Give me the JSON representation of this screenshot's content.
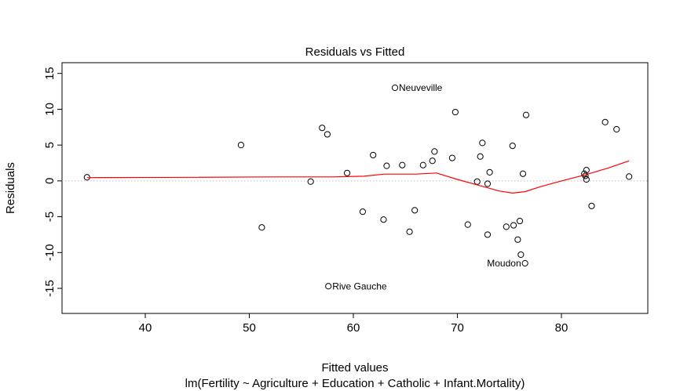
{
  "chart_data": {
    "type": "scatter",
    "title": "Residuals vs Fitted",
    "xlabel": "Fitted values",
    "subtitle": "lm(Fertility ~ Agriculture + Education + Catholic + Infant.Mortality)",
    "ylabel": "Residuals",
    "xlim": [
      32,
      88.3
    ],
    "ylim": [
      -18.5,
      16.5
    ],
    "x_ticks": [
      40,
      50,
      60,
      70,
      80
    ],
    "y_ticks": [
      -15,
      -10,
      -5,
      0,
      5,
      10,
      15
    ],
    "zero_line": {
      "y": 0,
      "color": "#bbbbbb",
      "style": "dotted"
    },
    "points": [
      {
        "x": 34.4,
        "y": 0.5
      },
      {
        "x": 49.2,
        "y": 5.0
      },
      {
        "x": 51.2,
        "y": -6.5
      },
      {
        "x": 55.9,
        "y": -0.1
      },
      {
        "x": 57.0,
        "y": 7.4
      },
      {
        "x": 57.5,
        "y": 6.5
      },
      {
        "x": 57.6,
        "y": -14.7
      },
      {
        "x": 59.4,
        "y": 1.1
      },
      {
        "x": 60.9,
        "y": -4.3
      },
      {
        "x": 61.9,
        "y": 3.6
      },
      {
        "x": 62.9,
        "y": -5.4
      },
      {
        "x": 63.2,
        "y": 2.1
      },
      {
        "x": 64.0,
        "y": 13.0
      },
      {
        "x": 64.7,
        "y": 2.2
      },
      {
        "x": 65.4,
        "y": -7.1
      },
      {
        "x": 65.9,
        "y": -4.1
      },
      {
        "x": 66.7,
        "y": 2.2
      },
      {
        "x": 67.6,
        "y": 2.8
      },
      {
        "x": 67.8,
        "y": 4.1
      },
      {
        "x": 69.5,
        "y": 3.2
      },
      {
        "x": 69.8,
        "y": 9.6
      },
      {
        "x": 71.0,
        "y": -6.1
      },
      {
        "x": 71.9,
        "y": -0.1
      },
      {
        "x": 72.2,
        "y": 3.4
      },
      {
        "x": 72.4,
        "y": 5.3
      },
      {
        "x": 72.9,
        "y": -0.4
      },
      {
        "x": 72.9,
        "y": -7.5
      },
      {
        "x": 73.1,
        "y": 1.2
      },
      {
        "x": 74.7,
        "y": -6.4
      },
      {
        "x": 75.3,
        "y": 4.9
      },
      {
        "x": 75.4,
        "y": -6.2
      },
      {
        "x": 75.8,
        "y": -8.2
      },
      {
        "x": 76.0,
        "y": -5.6
      },
      {
        "x": 76.1,
        "y": -10.3
      },
      {
        "x": 76.3,
        "y": 1.0
      },
      {
        "x": 76.5,
        "y": -11.5
      },
      {
        "x": 76.6,
        "y": 9.2
      },
      {
        "x": 82.2,
        "y": 1.0
      },
      {
        "x": 82.3,
        "y": 0.7
      },
      {
        "x": 82.4,
        "y": 1.5
      },
      {
        "x": 82.4,
        "y": 0.2
      },
      {
        "x": 82.9,
        "y": -3.5
      },
      {
        "x": 84.2,
        "y": 8.2
      },
      {
        "x": 85.3,
        "y": 7.2
      },
      {
        "x": 86.5,
        "y": 0.6
      }
    ],
    "smoother": {
      "color": "#ff0000",
      "points": [
        {
          "x": 34.4,
          "y": 0.45
        },
        {
          "x": 45.0,
          "y": 0.5
        },
        {
          "x": 52.0,
          "y": 0.55
        },
        {
          "x": 58.0,
          "y": 0.55
        },
        {
          "x": 61.0,
          "y": 0.65
        },
        {
          "x": 63.0,
          "y": 0.95
        },
        {
          "x": 66.0,
          "y": 0.95
        },
        {
          "x": 68.0,
          "y": 1.1
        },
        {
          "x": 70.0,
          "y": 0.2
        },
        {
          "x": 72.0,
          "y": -0.6
        },
        {
          "x": 74.0,
          "y": -1.4
        },
        {
          "x": 75.3,
          "y": -1.7
        },
        {
          "x": 76.5,
          "y": -1.5
        },
        {
          "x": 78.0,
          "y": -0.8
        },
        {
          "x": 80.0,
          "y": 0.0
        },
        {
          "x": 82.3,
          "y": 0.85
        },
        {
          "x": 84.5,
          "y": 1.8
        },
        {
          "x": 86.5,
          "y": 2.8
        }
      ]
    },
    "annotations": [
      {
        "label": "Neuveville",
        "x": 64.0,
        "y": 13.0,
        "side": "right"
      },
      {
        "label": "Moudon",
        "x": 76.5,
        "y": -11.5,
        "side": "left"
      },
      {
        "label": "Rive Gauche",
        "x": 57.6,
        "y": -14.7,
        "side": "right"
      }
    ]
  }
}
